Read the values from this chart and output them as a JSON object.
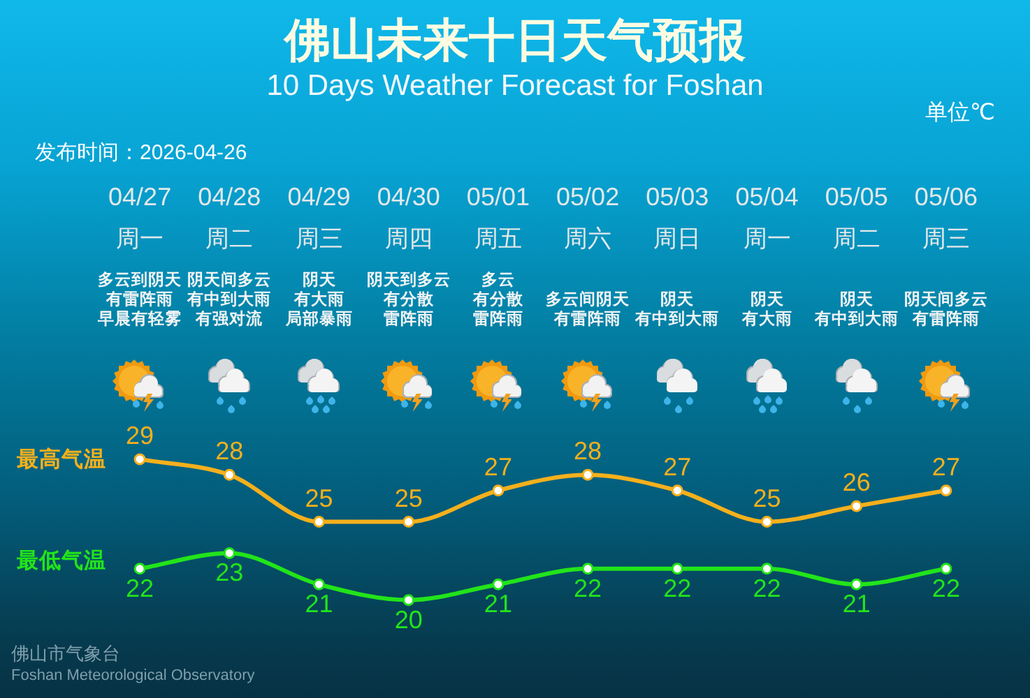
{
  "chart_data": {
    "type": "line",
    "title": "佛山未来十日天气预报",
    "subtitle": "10 Days Weather Forecast for Foshan",
    "categories": [
      "04/27",
      "04/28",
      "04/29",
      "04/30",
      "05/01",
      "05/02",
      "05/03",
      "05/04",
      "05/05",
      "05/06"
    ],
    "series": [
      {
        "name": "最高气温",
        "color": "#f5b01c",
        "values": [
          29,
          28,
          25,
          25,
          27,
          28,
          27,
          25,
          26,
          27
        ]
      },
      {
        "name": "最低气温",
        "color": "#22e41a",
        "values": [
          22,
          23,
          21,
          20,
          21,
          22,
          22,
          22,
          21,
          22
        ]
      }
    ],
    "data_labels": true,
    "marker": "circle",
    "line_style": "solid",
    "tick_labels": "x",
    "annotations": [
      "单位℃",
      "发布时间：2026-04-26",
      "佛山市气象台",
      "Foshan Meteorological Observatory",
      "周一",
      "多云到阴天",
      "有雷阵雨",
      "早晨有轻雾",
      "周二",
      "阴天间多云",
      "有中到大雨",
      "有强对流",
      "周三",
      "阴天",
      "有大雨",
      "局部暴雨",
      "周四",
      "阴天到多云",
      "有分散",
      "雷阵雨",
      "周五",
      "多云",
      "有分散",
      "雷阵雨",
      "周六",
      "多云间阴天",
      "有雷阵雨",
      "周日",
      "阴天",
      "有中到大雨",
      "周一",
      "阴天",
      "有大雨",
      "周二",
      "阴天",
      "有中到大雨",
      "周三",
      "阴天间多云",
      "有雷阵雨"
    ]
  }
}
